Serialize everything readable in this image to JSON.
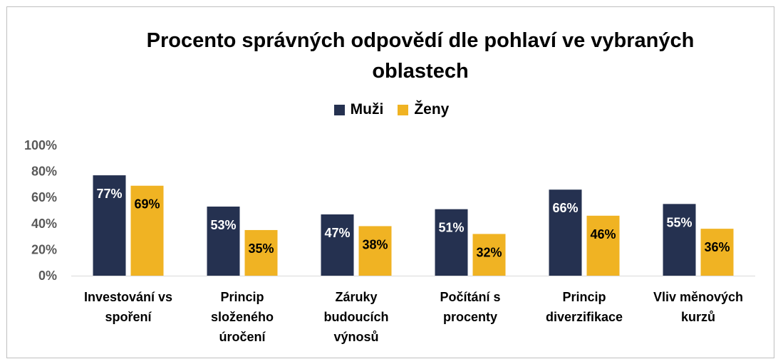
{
  "chart_data": {
    "type": "bar",
    "title": "Procento správných odpovědí dle pohlaví ve vybraných oblastech",
    "title_lines": [
      "Procento správných odpovědí dle pohlaví ve vybraných",
      "oblastech"
    ],
    "categories": [
      [
        "Investování vs",
        "spoření"
      ],
      [
        "Princip",
        "složeného",
        "úročení"
      ],
      [
        "Záruky",
        "budoucích",
        "výnosů"
      ],
      [
        "Počítání s",
        "procenty"
      ],
      [
        "Princip",
        "diverzifikace"
      ],
      [
        "Vliv měnových",
        "kurzů"
      ]
    ],
    "series": [
      {
        "name": "Muži",
        "color": "#253150",
        "label_color": "#ffffff",
        "values": [
          77,
          53,
          47,
          51,
          66,
          55
        ],
        "labels": [
          "77%",
          "53%",
          "47%",
          "51%",
          "66%",
          "55%"
        ]
      },
      {
        "name": "Ženy",
        "color": "#f0b323",
        "label_color": "#000000",
        "values": [
          69,
          35,
          38,
          32,
          46,
          36
        ],
        "labels": [
          "69%",
          "35%",
          "38%",
          "32%",
          "46%",
          "36%"
        ]
      }
    ],
    "ylim": [
      0,
      100
    ],
    "yticks": [
      "0%",
      "20%",
      "40%",
      "60%",
      "80%",
      "100%"
    ],
    "ytick_values": [
      0,
      20,
      40,
      60,
      80,
      100
    ],
    "grid": false,
    "legend_position": "top-center",
    "xlabel": "",
    "ylabel": ""
  }
}
